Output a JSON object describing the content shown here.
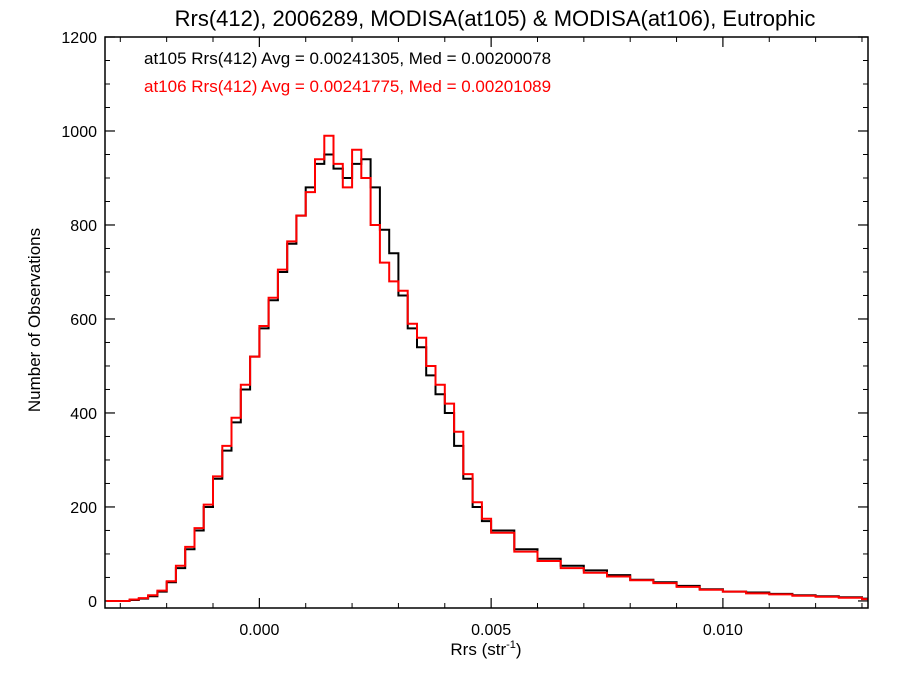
{
  "chart_data": {
    "type": "line",
    "step": true,
    "title": "Rrs(412), 2006289, MODISA(at105) & MODISA(at106), Eutrophic",
    "xlabel": "Rrs (str",
    "xlabel_sup": "-1",
    "xlabel_close": ")",
    "ylabel": "Number of Observations",
    "xlim": [
      -0.00333,
      0.01313
    ],
    "ylim": [
      -15,
      1200
    ],
    "xticks": [
      0.0,
      0.005,
      0.01
    ],
    "xtick_labels": [
      "0.000",
      "0.005",
      "0.010"
    ],
    "yticks": [
      0,
      200,
      400,
      600,
      800,
      1000,
      1200
    ],
    "ytick_labels": [
      "0",
      "200",
      "400",
      "600",
      "800",
      "1000",
      "1200"
    ],
    "grid": false,
    "annotations": [
      {
        "text": "at105 Rrs(412) Avg = 0.00241305, Med = 0.00200078",
        "color": "#000000"
      },
      {
        "text": "at106 Rrs(412) Avg = 0.00241775, Med = 0.00201089",
        "color": "#ff0000"
      }
    ],
    "series": [
      {
        "color": "#000000",
        "x": [
          -0.0033,
          -0.003,
          -0.0028,
          -0.0026,
          -0.0024,
          -0.0022,
          -0.002,
          -0.0018,
          -0.0016,
          -0.0014,
          -0.0012,
          -0.001,
          -0.0008,
          -0.0006,
          -0.0004,
          -0.0002,
          0.0,
          0.0002,
          0.0004,
          0.0006,
          0.0008,
          0.001,
          0.0012,
          0.0014,
          0.0016,
          0.0018,
          0.002,
          0.0022,
          0.0024,
          0.0026,
          0.0028,
          0.003,
          0.0032,
          0.0034,
          0.0036,
          0.0038,
          0.004,
          0.0042,
          0.0044,
          0.0046,
          0.0048,
          0.005,
          0.0055,
          0.006,
          0.0065,
          0.007,
          0.0075,
          0.008,
          0.0085,
          0.009,
          0.0095,
          0.01,
          0.0105,
          0.011,
          0.0115,
          0.012,
          0.0125,
          0.013
        ],
        "values": [
          0,
          0,
          2,
          5,
          10,
          20,
          40,
          70,
          110,
          150,
          200,
          260,
          320,
          380,
          450,
          520,
          580,
          640,
          700,
          760,
          820,
          880,
          930,
          950,
          920,
          900,
          930,
          940,
          880,
          790,
          740,
          650,
          580,
          540,
          480,
          440,
          400,
          330,
          260,
          200,
          170,
          150,
          110,
          90,
          75,
          65,
          55,
          45,
          40,
          32,
          25,
          20,
          18,
          15,
          12,
          10,
          8,
          5
        ]
      },
      {
        "color": "#ff0000",
        "x": [
          -0.0033,
          -0.003,
          -0.0028,
          -0.0026,
          -0.0024,
          -0.0022,
          -0.002,
          -0.0018,
          -0.0016,
          -0.0014,
          -0.0012,
          -0.001,
          -0.0008,
          -0.0006,
          -0.0004,
          -0.0002,
          0.0,
          0.0002,
          0.0004,
          0.0006,
          0.0008,
          0.001,
          0.0012,
          0.0014,
          0.0016,
          0.0018,
          0.002,
          0.0022,
          0.0024,
          0.0026,
          0.0028,
          0.003,
          0.0032,
          0.0034,
          0.0036,
          0.0038,
          0.004,
          0.0042,
          0.0044,
          0.0046,
          0.0048,
          0.005,
          0.0055,
          0.006,
          0.0065,
          0.007,
          0.0075,
          0.008,
          0.0085,
          0.009,
          0.0095,
          0.01,
          0.0105,
          0.011,
          0.0115,
          0.012,
          0.0125,
          0.013
        ],
        "values": [
          0,
          0,
          3,
          6,
          12,
          22,
          42,
          75,
          115,
          155,
          205,
          265,
          330,
          390,
          460,
          520,
          585,
          645,
          705,
          765,
          820,
          870,
          940,
          990,
          930,
          880,
          960,
          900,
          800,
          720,
          680,
          660,
          590,
          560,
          500,
          460,
          420,
          360,
          270,
          210,
          175,
          145,
          105,
          85,
          70,
          60,
          52,
          44,
          38,
          30,
          24,
          20,
          16,
          14,
          11,
          9,
          7,
          4
        ]
      }
    ]
  }
}
